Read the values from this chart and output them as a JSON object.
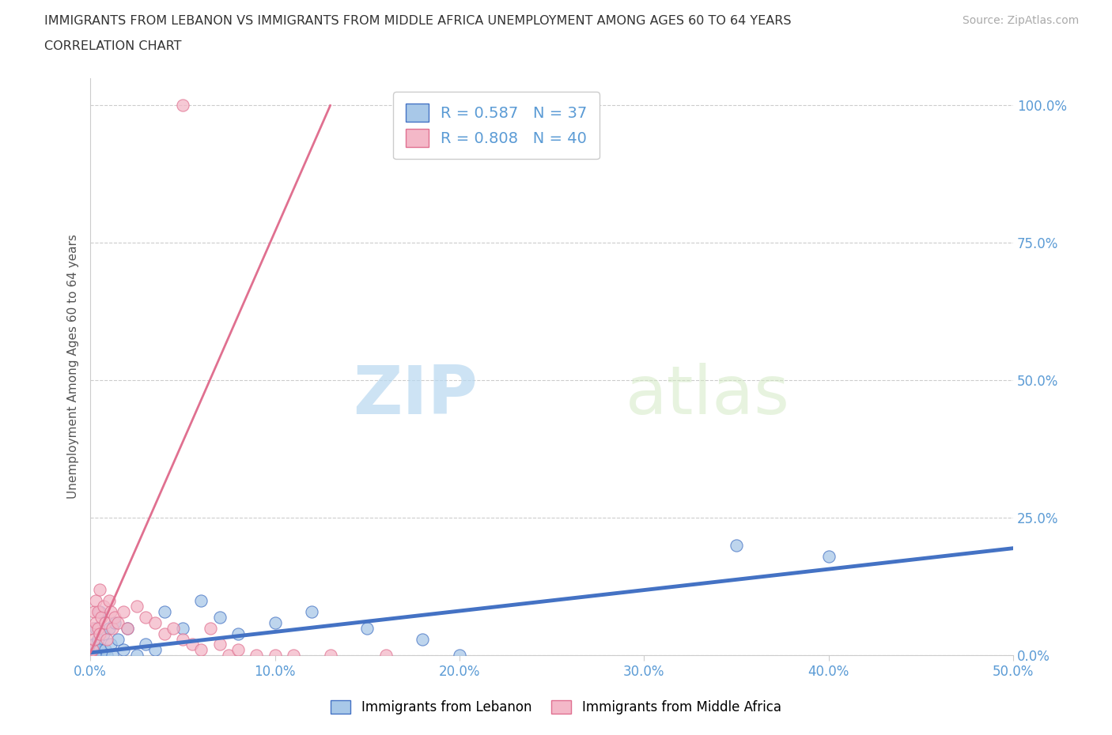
{
  "title_line1": "IMMIGRANTS FROM LEBANON VS IMMIGRANTS FROM MIDDLE AFRICA UNEMPLOYMENT AMONG AGES 60 TO 64 YEARS",
  "title_line2": "CORRELATION CHART",
  "source": "Source: ZipAtlas.com",
  "ylabel": "Unemployment Among Ages 60 to 64 years",
  "xlim": [
    0.0,
    0.5
  ],
  "ylim": [
    0.0,
    1.05
  ],
  "xticks": [
    0.0,
    0.1,
    0.2,
    0.3,
    0.4,
    0.5
  ],
  "xticklabels": [
    "0.0%",
    "10.0%",
    "20.0%",
    "30.0%",
    "40.0%",
    "50.0%"
  ],
  "yticks": [
    0.0,
    0.25,
    0.5,
    0.75,
    1.0
  ],
  "yticklabels": [
    "0.0%",
    "25.0%",
    "50.0%",
    "75.0%",
    "100.0%"
  ],
  "lebanon_color": "#a8c8e8",
  "lebanon_color_line": "#4472c4",
  "middle_africa_color": "#f4b8c8",
  "middle_africa_color_line": "#e07090",
  "legend_label_lebanon": "Immigrants from Lebanon",
  "legend_label_middle_africa": "Immigrants from Middle Africa",
  "R_lebanon": 0.587,
  "N_lebanon": 37,
  "R_middle_africa": 0.808,
  "N_middle_africa": 40,
  "watermark_zip": "ZIP",
  "watermark_atlas": "atlas",
  "lebanon_x": [
    0.0,
    0.001,
    0.001,
    0.002,
    0.002,
    0.003,
    0.003,
    0.004,
    0.004,
    0.005,
    0.005,
    0.006,
    0.007,
    0.008,
    0.009,
    0.01,
    0.011,
    0.012,
    0.013,
    0.015,
    0.018,
    0.02,
    0.025,
    0.03,
    0.035,
    0.04,
    0.05,
    0.06,
    0.07,
    0.08,
    0.1,
    0.12,
    0.15,
    0.18,
    0.2,
    0.35,
    0.4
  ],
  "lebanon_y": [
    0.0,
    0.0,
    0.01,
    0.0,
    0.02,
    0.0,
    0.05,
    0.0,
    0.03,
    0.01,
    0.08,
    0.0,
    0.04,
    0.01,
    0.0,
    0.05,
    0.02,
    0.0,
    0.06,
    0.03,
    0.01,
    0.05,
    0.0,
    0.02,
    0.01,
    0.08,
    0.05,
    0.1,
    0.07,
    0.04,
    0.06,
    0.08,
    0.05,
    0.03,
    0.0,
    0.2,
    0.18
  ],
  "middle_africa_x": [
    0.0,
    0.001,
    0.001,
    0.002,
    0.002,
    0.003,
    0.003,
    0.004,
    0.004,
    0.005,
    0.005,
    0.006,
    0.007,
    0.008,
    0.009,
    0.01,
    0.011,
    0.012,
    0.013,
    0.015,
    0.018,
    0.02,
    0.025,
    0.03,
    0.035,
    0.04,
    0.045,
    0.05,
    0.055,
    0.06,
    0.065,
    0.07,
    0.075,
    0.08,
    0.09,
    0.1,
    0.11,
    0.13,
    0.16,
    0.05
  ],
  "middle_africa_y": [
    0.0,
    0.01,
    0.05,
    0.03,
    0.08,
    0.06,
    0.1,
    0.05,
    0.08,
    0.04,
    0.12,
    0.07,
    0.09,
    0.06,
    0.03,
    0.1,
    0.08,
    0.05,
    0.07,
    0.06,
    0.08,
    0.05,
    0.09,
    0.07,
    0.06,
    0.04,
    0.05,
    0.03,
    0.02,
    0.01,
    0.05,
    0.02,
    0.0,
    0.01,
    0.0,
    0.0,
    0.0,
    0.0,
    0.0,
    1.0
  ],
  "leb_line_x": [
    0.0,
    0.5
  ],
  "leb_line_y": [
    0.005,
    0.195
  ],
  "maf_line_x": [
    0.0,
    0.13
  ],
  "maf_line_y": [
    0.005,
    1.0
  ]
}
